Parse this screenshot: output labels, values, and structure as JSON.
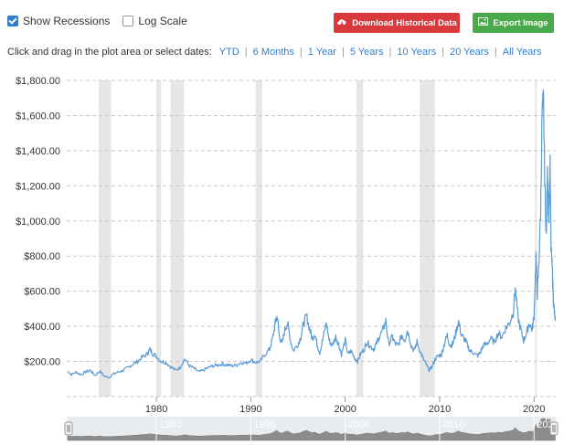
{
  "controls": {
    "show_recessions_label": "Show Recessions",
    "show_recessions_checked": true,
    "log_scale_label": "Log Scale",
    "log_scale_checked": false,
    "download_label": "Download Historical Data",
    "export_label": "Export Image",
    "download_color": "#d9383c",
    "export_color": "#4aa94b",
    "download_icon": "cloud-download-icon",
    "export_icon": "image-icon"
  },
  "range_selector": {
    "prompt": "Click and drag in the plot area or select dates:",
    "options": [
      "YTD",
      "6 Months",
      "1 Year",
      "5 Years",
      "10 Years",
      "20 Years",
      "All Years"
    ]
  },
  "chart_data": {
    "type": "line",
    "title": "",
    "xlabel": "",
    "ylabel": "",
    "xlim": [
      1970.5,
      2022.3
    ],
    "ylim": [
      0,
      1800
    ],
    "grid": "horizontal-dashed",
    "line_color": "#5b9bd5",
    "recession_color": "#e6e6e6",
    "y_ticks": [
      200,
      400,
      600,
      800,
      1000,
      1200,
      1400,
      1600,
      1800
    ],
    "y_tick_labels": [
      "$200.00",
      "$400.00",
      "$600.00",
      "$800.00",
      "$1,000.00",
      "$1,200.00",
      "$1,400.00",
      "$1,600.00",
      "$1,800.00"
    ],
    "x_ticks": [
      1980,
      1990,
      2000,
      2010,
      2020
    ],
    "x_tick_labels": [
      "1980",
      "1990",
      "2000",
      "2010",
      "2020"
    ],
    "navigator_labels": [
      "1980",
      "1990",
      "2000",
      "2010",
      "202"
    ],
    "recessions": [
      [
        1973.9,
        1975.2
      ],
      [
        1980.0,
        1980.5
      ],
      [
        1981.5,
        1982.9
      ],
      [
        1990.5,
        1991.2
      ],
      [
        2001.2,
        2001.9
      ],
      [
        2007.9,
        2009.5
      ],
      [
        2020.1,
        2020.3
      ]
    ],
    "series": [
      {
        "values": [
          [
            1970.6,
            145
          ],
          [
            1971.0,
            125
          ],
          [
            1971.5,
            140
          ],
          [
            1972.0,
            125
          ],
          [
            1972.5,
            140
          ],
          [
            1973.0,
            150
          ],
          [
            1973.5,
            120
          ],
          [
            1974.0,
            145
          ],
          [
            1974.5,
            115
          ],
          [
            1975.0,
            110
          ],
          [
            1975.5,
            130
          ],
          [
            1976.0,
            140
          ],
          [
            1976.5,
            150
          ],
          [
            1977.0,
            165
          ],
          [
            1977.5,
            185
          ],
          [
            1978.0,
            200
          ],
          [
            1978.5,
            225
          ],
          [
            1979.0,
            240
          ],
          [
            1979.3,
            270
          ],
          [
            1979.6,
            245
          ],
          [
            1980.0,
            230
          ],
          [
            1980.5,
            200
          ],
          [
            1981.0,
            195
          ],
          [
            1981.5,
            170
          ],
          [
            1982.0,
            150
          ],
          [
            1982.5,
            165
          ],
          [
            1983.0,
            215
          ],
          [
            1983.5,
            175
          ],
          [
            1984.0,
            160
          ],
          [
            1984.5,
            140
          ],
          [
            1985.0,
            150
          ],
          [
            1985.5,
            165
          ],
          [
            1986.0,
            175
          ],
          [
            1986.5,
            180
          ],
          [
            1987.0,
            185
          ],
          [
            1987.5,
            180
          ],
          [
            1988.0,
            175
          ],
          [
            1988.5,
            180
          ],
          [
            1989.0,
            195
          ],
          [
            1989.5,
            190
          ],
          [
            1990.0,
            210
          ],
          [
            1990.5,
            195
          ],
          [
            1991.0,
            200
          ],
          [
            1991.5,
            240
          ],
          [
            1992.0,
            270
          ],
          [
            1992.3,
            330
          ],
          [
            1992.6,
            420
          ],
          [
            1992.8,
            460
          ],
          [
            1993.0,
            350
          ],
          [
            1993.3,
            300
          ],
          [
            1993.6,
            380
          ],
          [
            1993.9,
            420
          ],
          [
            1994.2,
            320
          ],
          [
            1994.5,
            260
          ],
          [
            1995.0,
            300
          ],
          [
            1995.3,
            340
          ],
          [
            1995.6,
            420
          ],
          [
            1995.9,
            460
          ],
          [
            1996.2,
            390
          ],
          [
            1996.5,
            330
          ],
          [
            1996.8,
            360
          ],
          [
            1997.0,
            300
          ],
          [
            1997.3,
            250
          ],
          [
            1997.6,
            320
          ],
          [
            1998.0,
            420
          ],
          [
            1998.3,
            320
          ],
          [
            1998.6,
            290
          ],
          [
            1999.0,
            340
          ],
          [
            1999.3,
            300
          ],
          [
            1999.6,
            240
          ],
          [
            2000.0,
            320
          ],
          [
            2000.3,
            240
          ],
          [
            2000.6,
            260
          ],
          [
            2001.0,
            220
          ],
          [
            2001.3,
            200
          ],
          [
            2001.6,
            240
          ],
          [
            2002.0,
            270
          ],
          [
            2002.3,
            310
          ],
          [
            2002.6,
            290
          ],
          [
            2003.0,
            270
          ],
          [
            2003.3,
            300
          ],
          [
            2003.6,
            340
          ],
          [
            2004.0,
            380
          ],
          [
            2004.3,
            430
          ],
          [
            2004.6,
            300
          ],
          [
            2005.0,
            340
          ],
          [
            2005.3,
            300
          ],
          [
            2005.6,
            290
          ],
          [
            2006.0,
            350
          ],
          [
            2006.3,
            320
          ],
          [
            2006.6,
            380
          ],
          [
            2007.0,
            290
          ],
          [
            2007.3,
            260
          ],
          [
            2007.6,
            310
          ],
          [
            2008.0,
            250
          ],
          [
            2008.3,
            210
          ],
          [
            2008.6,
            180
          ],
          [
            2008.9,
            150
          ],
          [
            2009.2,
            170
          ],
          [
            2009.5,
            210
          ],
          [
            2009.8,
            230
          ],
          [
            2010.2,
            240
          ],
          [
            2010.5,
            300
          ],
          [
            2010.8,
            350
          ],
          [
            2011.1,
            290
          ],
          [
            2011.4,
            300
          ],
          [
            2011.7,
            360
          ],
          [
            2012.0,
            430
          ],
          [
            2012.3,
            350
          ],
          [
            2012.6,
            330
          ],
          [
            2012.9,
            300
          ],
          [
            2013.2,
            260
          ],
          [
            2013.6,
            250
          ],
          [
            2014.0,
            230
          ],
          [
            2014.3,
            250
          ],
          [
            2014.6,
            290
          ],
          [
            2015.0,
            300
          ],
          [
            2015.4,
            330
          ],
          [
            2015.8,
            310
          ],
          [
            2016.2,
            360
          ],
          [
            2016.6,
            340
          ],
          [
            2017.0,
            390
          ],
          [
            2017.4,
            420
          ],
          [
            2017.8,
            480
          ],
          [
            2018.0,
            620
          ],
          [
            2018.3,
            450
          ],
          [
            2018.6,
            380
          ],
          [
            2018.9,
            320
          ],
          [
            2019.2,
            360
          ],
          [
            2019.5,
            420
          ],
          [
            2019.8,
            380
          ],
          [
            2020.0,
            460
          ],
          [
            2020.2,
            800
          ],
          [
            2020.35,
            580
          ],
          [
            2020.5,
            750
          ],
          [
            2020.7,
            1050
          ],
          [
            2020.85,
            1600
          ],
          [
            2021.0,
            1680
          ],
          [
            2021.15,
            1200
          ],
          [
            2021.3,
            900
          ],
          [
            2021.45,
            1320
          ],
          [
            2021.55,
            1000
          ],
          [
            2021.7,
            1300
          ],
          [
            2021.8,
            850
          ],
          [
            2021.95,
            700
          ],
          [
            2022.05,
            550
          ],
          [
            2022.15,
            480
          ],
          [
            2022.25,
            430
          ]
        ]
      }
    ]
  }
}
